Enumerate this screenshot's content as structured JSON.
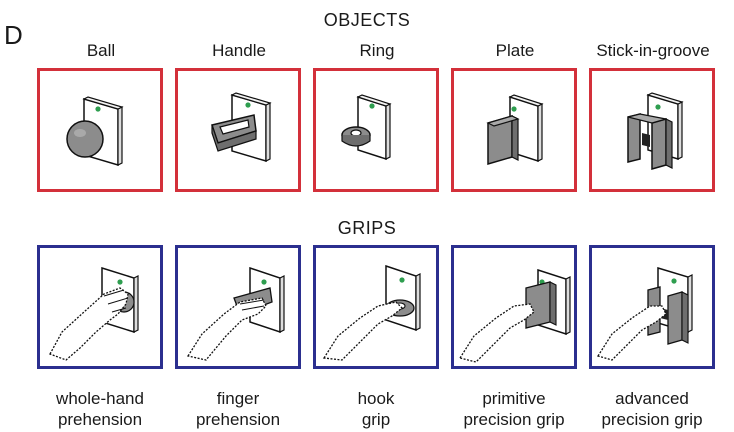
{
  "panel_label": "D",
  "sections": {
    "objects_title": "OBJECTS",
    "grips_title": "GRIPS"
  },
  "colors": {
    "objects_frame": "#d3303a",
    "grips_frame": "#2b2f8f",
    "object_fill": "#8c8c8c",
    "indicator": "#2e9e4f"
  },
  "objects": [
    {
      "label": "Ball"
    },
    {
      "label": "Handle"
    },
    {
      "label": "Ring"
    },
    {
      "label": "Plate"
    },
    {
      "label": "Stick-in-groove"
    }
  ],
  "grips": [
    {
      "line1": "whole-hand",
      "line2": "prehension"
    },
    {
      "line1": "finger",
      "line2": "prehension"
    },
    {
      "line1": "hook",
      "line2": "grip"
    },
    {
      "line1": "primitive",
      "line2": "precision grip"
    },
    {
      "line1": "advanced",
      "line2": "precision grip"
    }
  ]
}
